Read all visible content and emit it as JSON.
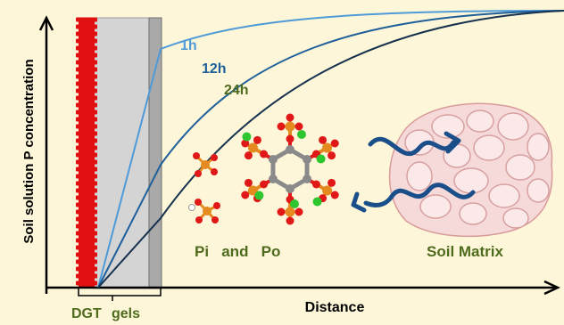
{
  "axes": {
    "ylabel": "Soil solution P concentration",
    "xlabel": "Distance"
  },
  "curves": [
    {
      "label": "1h",
      "color": "#4f9ad8"
    },
    {
      "label": "12h",
      "color": "#1f5f9a"
    },
    {
      "label": "24h",
      "color": "#17324f"
    }
  ],
  "labels": {
    "dgt": "DGT",
    "gels": "gels",
    "pi_po": "Pi   and   Po",
    "soil_matrix": "Soil Matrix"
  },
  "colors": {
    "background": "#fdf6d8",
    "label_green": "#4f6b1d",
    "curve_24h_label": "#4f6b1d",
    "resin": "#e01010",
    "gel": "#d4d4d4",
    "filter": "#a9a9a9",
    "arrow": "#1b4f8a",
    "phosphorus": "#e48a1e",
    "oxygen": "#e01818",
    "metal": "#2ec62e",
    "carbon": "#8a8a8a",
    "hydrogen": "#ffffff",
    "soil_cells": "#f1c6c6"
  },
  "icons": [
    "phosphate-molecule-icon",
    "phytate-molecule-icon",
    "exchange-arrows-icon",
    "soil-aggregate-icon"
  ]
}
